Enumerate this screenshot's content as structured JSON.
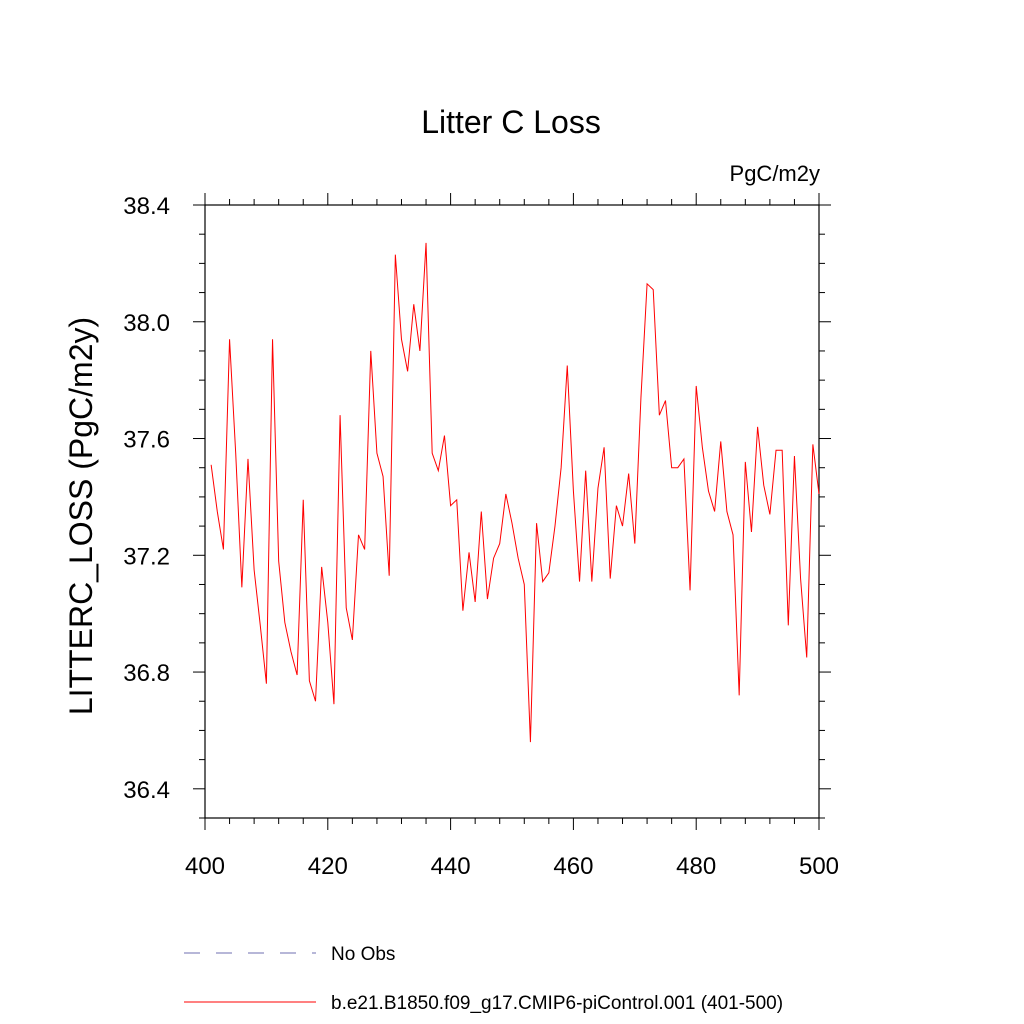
{
  "chart_data": {
    "type": "line",
    "title": "Litter C Loss",
    "units_label": "PgC/m2y",
    "ylabel": "LITTERC_LOSS  (PgC/m2y)",
    "xlabel": "",
    "xlim": [
      400,
      500
    ],
    "ylim": [
      36.3,
      38.4
    ],
    "x_ticks": [
      400,
      420,
      440,
      460,
      480,
      500
    ],
    "x_tick_labels": [
      "400",
      "420",
      "440",
      "460",
      "480",
      "500"
    ],
    "y_ticks": [
      36.4,
      36.8,
      37.2,
      37.6,
      38.0,
      38.4
    ],
    "y_tick_labels": [
      "36.4",
      "36.8",
      "37.2",
      "37.6",
      "38.0",
      "38.4"
    ],
    "grid": false,
    "legend_position": "bottom",
    "legend": [
      {
        "label": "No Obs",
        "color": "#6f6fb0",
        "style": "dashed"
      },
      {
        "label": "b.e21.B1850.f09_g17.CMIP6-piControl.001 (401-500)",
        "color": "#ff0000",
        "style": "solid"
      }
    ],
    "series": [
      {
        "name": "b.e21.B1850.f09_g17.CMIP6-piControl.001 (401-500)",
        "color": "#ff0000",
        "x": [
          401,
          402,
          403,
          404,
          405,
          406,
          407,
          408,
          409,
          410,
          411,
          412,
          413,
          414,
          415,
          416,
          417,
          418,
          419,
          420,
          421,
          422,
          423,
          424,
          425,
          426,
          427,
          428,
          429,
          430,
          431,
          432,
          433,
          434,
          435,
          436,
          437,
          438,
          439,
          440,
          441,
          442,
          443,
          444,
          445,
          446,
          447,
          448,
          449,
          450,
          451,
          452,
          453,
          454,
          455,
          456,
          457,
          458,
          459,
          460,
          461,
          462,
          463,
          464,
          465,
          466,
          467,
          468,
          469,
          470,
          471,
          472,
          473,
          474,
          475,
          476,
          477,
          478,
          479,
          480,
          481,
          482,
          483,
          484,
          485,
          486,
          487,
          488,
          489,
          490,
          491,
          492,
          493,
          494,
          495,
          496,
          497,
          498,
          499,
          500
        ],
        "y": [
          37.51,
          37.35,
          37.22,
          37.94,
          37.55,
          37.09,
          37.53,
          37.15,
          36.96,
          36.76,
          37.94,
          37.18,
          36.97,
          36.87,
          36.79,
          37.39,
          36.77,
          36.7,
          37.16,
          36.97,
          36.69,
          37.68,
          37.02,
          36.91,
          37.27,
          37.22,
          37.9,
          37.55,
          37.47,
          37.13,
          38.23,
          37.94,
          37.83,
          38.06,
          37.9,
          38.27,
          37.55,
          37.49,
          37.61,
          37.37,
          37.39,
          37.01,
          37.21,
          37.04,
          37.35,
          37.05,
          37.19,
          37.24,
          37.41,
          37.31,
          37.19,
          37.1,
          36.56,
          37.31,
          37.11,
          37.14,
          37.3,
          37.5,
          37.85,
          37.42,
          37.11,
          37.49,
          37.11,
          37.43,
          37.57,
          37.12,
          37.37,
          37.3,
          37.48,
          37.24,
          37.74,
          38.13,
          38.11,
          37.68,
          37.73,
          37.5,
          37.5,
          37.53,
          37.08,
          37.78,
          37.57,
          37.42,
          37.35,
          37.59,
          37.35,
          37.27,
          36.72,
          37.52,
          37.28,
          37.64,
          37.44,
          37.34,
          37.56,
          37.56,
          36.96,
          37.54,
          37.12,
          36.85,
          37.58,
          37.41
        ]
      }
    ]
  }
}
